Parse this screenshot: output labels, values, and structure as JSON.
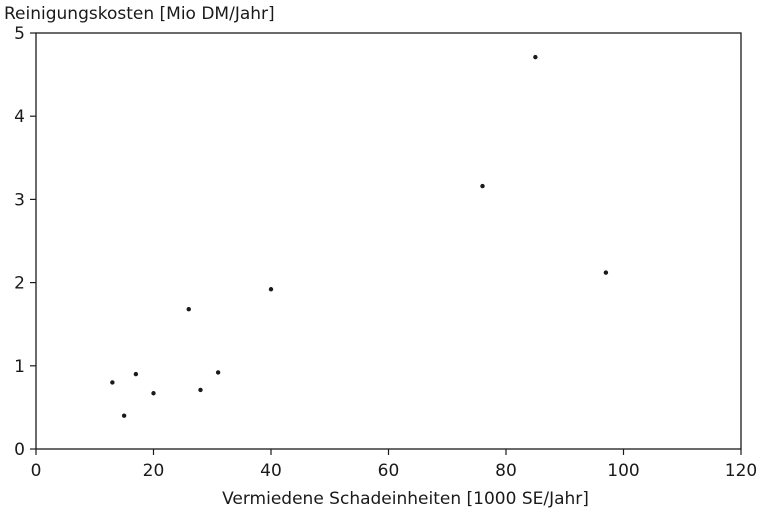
{
  "chart_data": {
    "type": "scatter",
    "title": "",
    "xlabel": "Vermiedene Schadeinheiten [1000 SE/Jahr]",
    "ylabel": "Reinigungskosten [Mio DM/Jahr]",
    "xlim": [
      0,
      120
    ],
    "ylim": [
      0,
      5
    ],
    "xticks": [
      0,
      20,
      40,
      60,
      80,
      100,
      120
    ],
    "yticks": [
      0,
      1,
      2,
      3,
      4,
      5
    ],
    "xtick_labels": [
      "0",
      "20",
      "40",
      "60",
      "80",
      "100",
      "120"
    ],
    "ytick_labels": [
      "0",
      "1",
      "2",
      "3",
      "4",
      "5"
    ],
    "grid": false,
    "legend": "none",
    "points": [
      {
        "x": 13,
        "y": 0.8
      },
      {
        "x": 15,
        "y": 0.4
      },
      {
        "x": 17,
        "y": 0.9
      },
      {
        "x": 20,
        "y": 0.67
      },
      {
        "x": 26,
        "y": 1.68
      },
      {
        "x": 28,
        "y": 0.71
      },
      {
        "x": 31,
        "y": 0.92
      },
      {
        "x": 40,
        "y": 1.92
      },
      {
        "x": 76,
        "y": 3.16
      },
      {
        "x": 85,
        "y": 4.71
      },
      {
        "x": 97,
        "y": 2.12
      }
    ]
  }
}
